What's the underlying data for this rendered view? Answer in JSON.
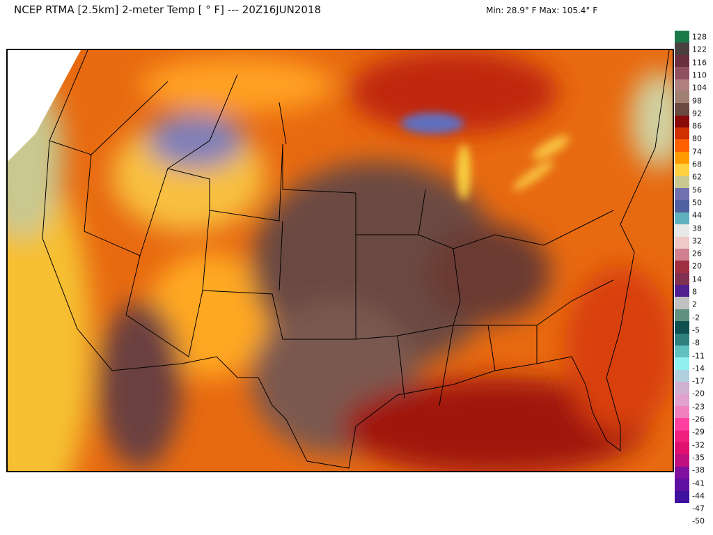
{
  "header": {
    "title": "NCEP RTMA [2.5km] 2-meter Temp [ ° F]  --- 20Z16JUN2018",
    "minmax": "Min: 28.9° F Max: 105.4° F"
  },
  "colorbar": {
    "labels": [
      "128",
      "122",
      "116",
      "110",
      "104",
      "98",
      "92",
      "86",
      "80",
      "74",
      "68",
      "62",
      "56",
      "50",
      "44",
      "38",
      "32",
      "26",
      "20",
      "14",
      "8",
      "2",
      "-2",
      "-5",
      "-8",
      "-11",
      "-14",
      "-17",
      "-20",
      "-23",
      "-26",
      "-29",
      "-32",
      "-35",
      "-38",
      "-41",
      "-44",
      "-47",
      "-50"
    ],
    "colors": [
      "#1a7a4a",
      "#4a4040",
      "#6a3040",
      "#905060",
      "#b08080",
      "#a08070",
      "#6a4a40",
      "#8a0a0a",
      "#d03000",
      "#ff6000",
      "#ff9a00",
      "#ffd040",
      "#c8c890",
      "#7070b0",
      "#5060a0",
      "#60b0c0",
      "#e8e8e8",
      "#f0c8c8",
      "#d08090",
      "#a03040",
      "#803050",
      "#502090",
      "#c0c0c0",
      "#609080",
      "#105050",
      "#308080",
      "#60c0c0",
      "#90f0f0",
      "#b0d0e0",
      "#d0b0d0",
      "#e0a0d0",
      "#f080c0",
      "#ff40a0",
      "#f02080",
      "#e01070",
      "#c01080",
      "#8010a0",
      "#6010a0",
      "#4010a0"
    ]
  },
  "map": {
    "variable": "2-meter temperature",
    "units": "°F",
    "region": "CONUS"
  }
}
